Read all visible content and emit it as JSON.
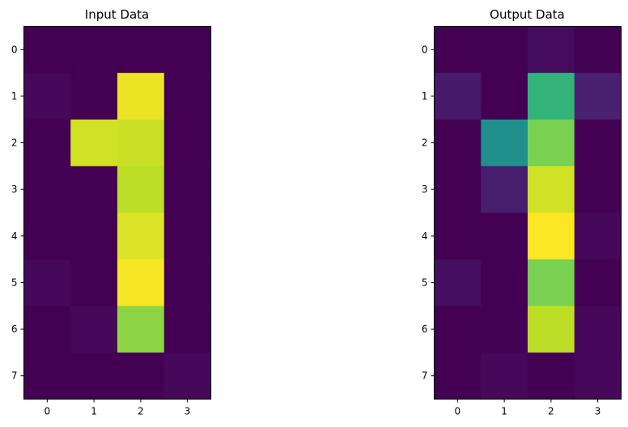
{
  "chart_data": [
    {
      "type": "heatmap",
      "title": "Input Data",
      "xlabel": "",
      "ylabel": "",
      "x_ticks": [
        "0",
        "1",
        "2",
        "3"
      ],
      "y_ticks": [
        "0",
        "1",
        "2",
        "3",
        "4",
        "5",
        "6",
        "7"
      ],
      "colormap": "viridis",
      "vmin": 0.0,
      "vmax": 1.0,
      "values": [
        [
          0.0,
          0.0,
          0.0,
          0.0
        ],
        [
          0.02,
          0.0,
          0.97,
          0.0
        ],
        [
          0.0,
          0.93,
          0.92,
          0.0
        ],
        [
          0.0,
          0.0,
          0.9,
          0.0
        ],
        [
          0.0,
          0.0,
          0.95,
          0.0
        ],
        [
          0.02,
          0.0,
          0.99,
          0.0
        ],
        [
          0.0,
          0.02,
          0.83,
          0.0
        ],
        [
          0.0,
          0.0,
          0.0,
          0.02
        ]
      ]
    },
    {
      "type": "heatmap",
      "title": "Output Data",
      "xlabel": "",
      "ylabel": "",
      "x_ticks": [
        "0",
        "1",
        "2",
        "3"
      ],
      "y_ticks": [
        "0",
        "1",
        "2",
        "3",
        "4",
        "5",
        "6",
        "7"
      ],
      "colormap": "viridis",
      "vmin": 0.0,
      "vmax": 1.0,
      "values": [
        [
          0.0,
          0.0,
          0.03,
          0.0
        ],
        [
          0.07,
          0.0,
          0.65,
          0.09
        ],
        [
          0.0,
          0.5,
          0.8,
          0.0
        ],
        [
          0.0,
          0.08,
          0.93,
          0.0
        ],
        [
          0.0,
          0.0,
          1.0,
          0.02
        ],
        [
          0.04,
          0.0,
          0.8,
          0.0
        ],
        [
          0.0,
          0.0,
          0.9,
          0.02
        ],
        [
          0.0,
          0.02,
          0.0,
          0.02
        ]
      ]
    }
  ]
}
